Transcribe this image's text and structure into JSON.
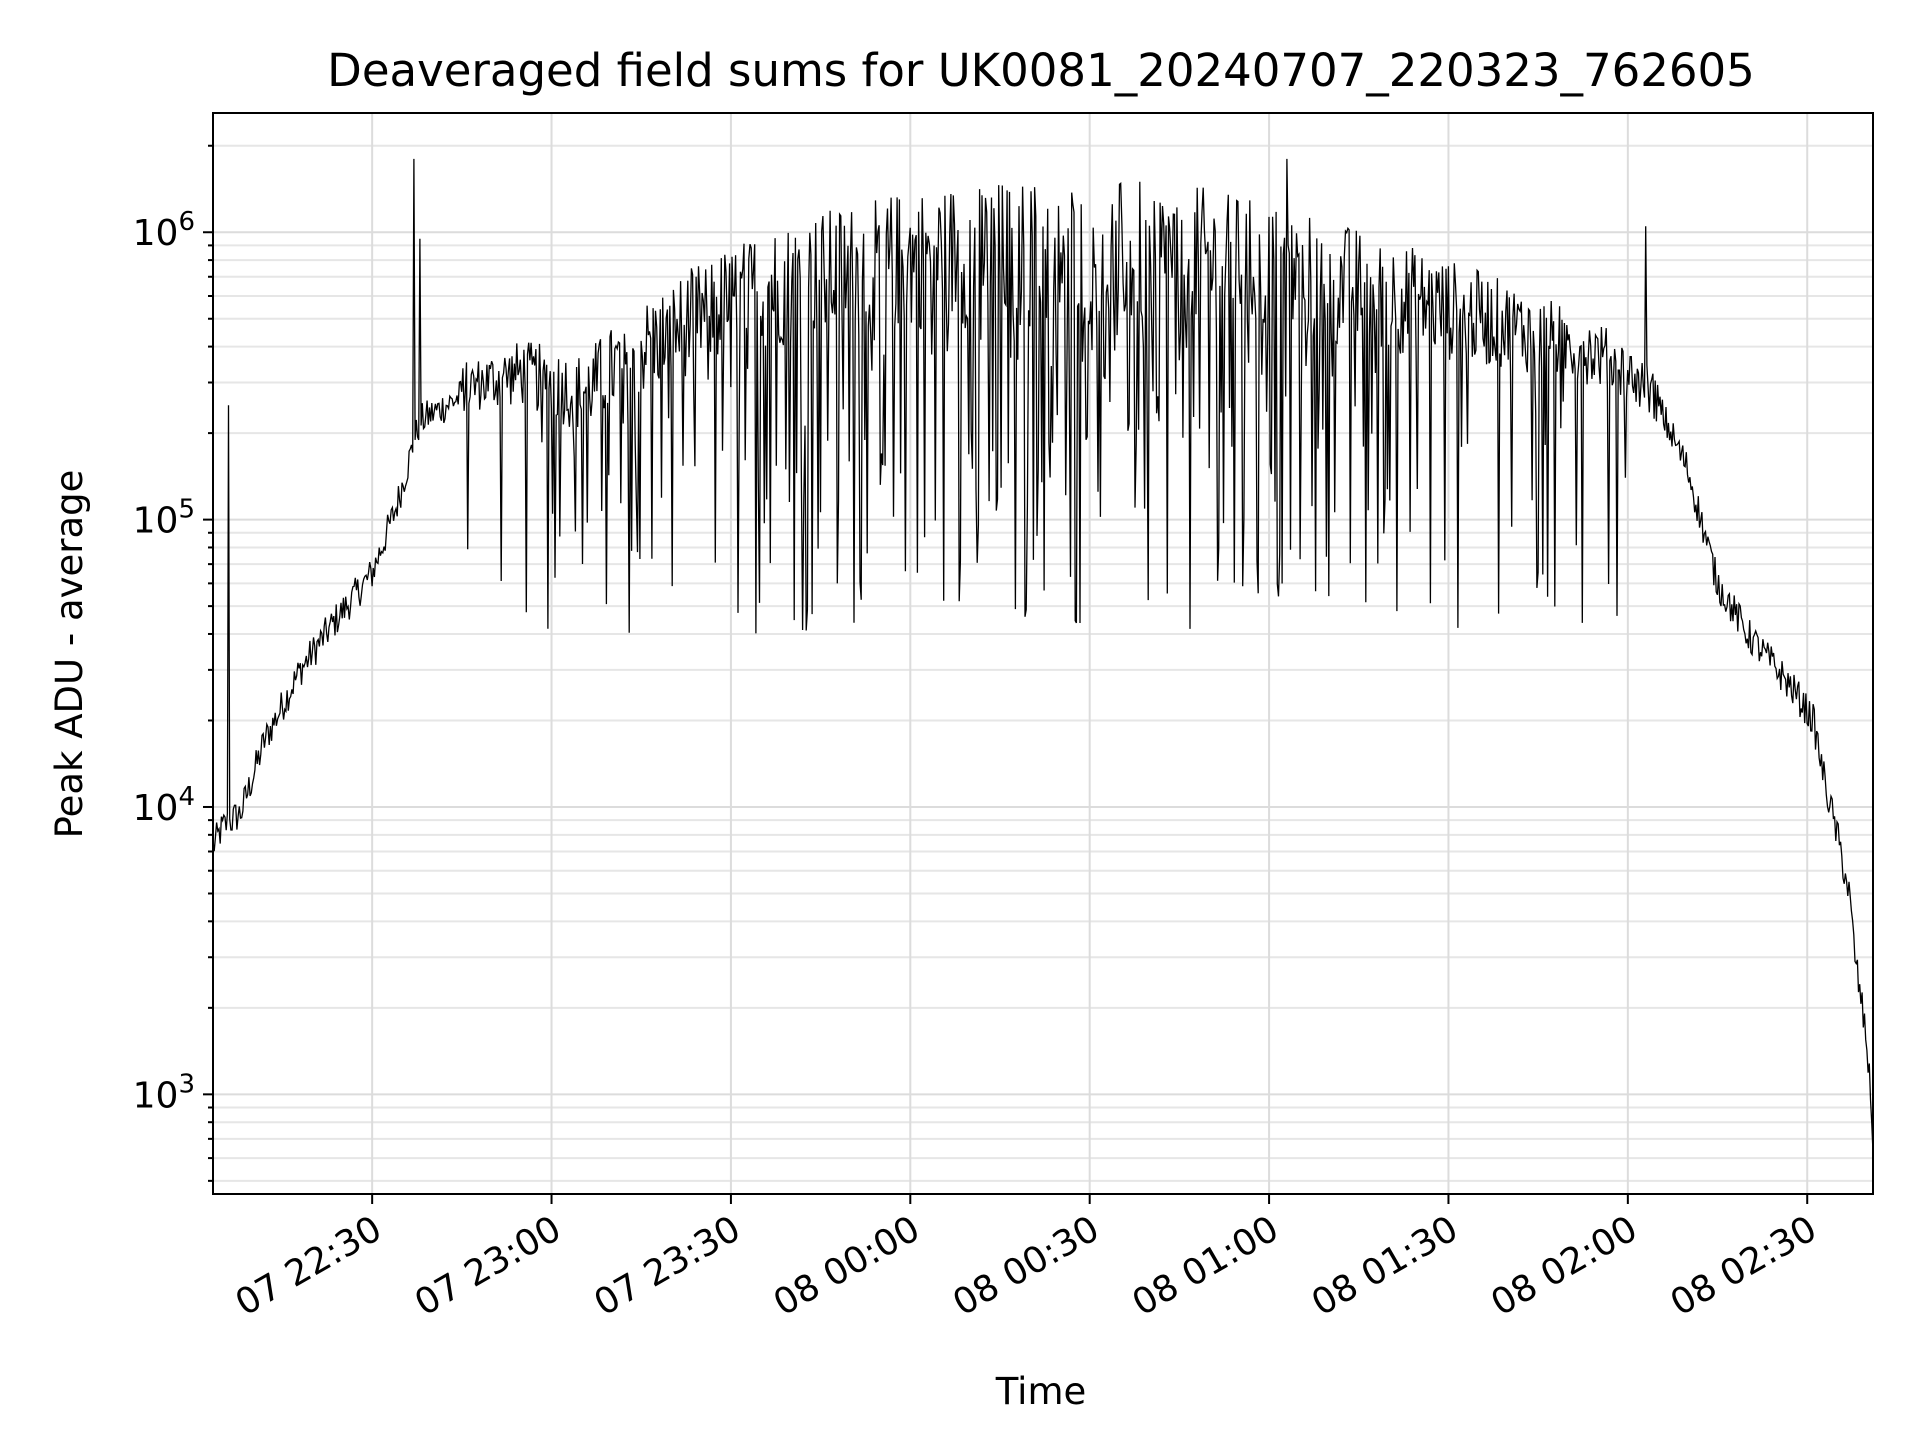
{
  "chart_data": {
    "type": "line",
    "title": "Deaveraged field sums for UK0081_20240707_220323_762605",
    "xlabel": "Time",
    "ylabel": "Peak ADU - average",
    "y_scale": "log",
    "ylim": [
      450,
      2600000
    ],
    "xlim": [
      "2024-07-07 22:03:23",
      "2024-07-08 02:41:00"
    ],
    "grid": true,
    "x_ticks": [
      "07 22:30",
      "07 23:00",
      "07 23:30",
      "08 00:00",
      "08 00:30",
      "08 01:00",
      "08 01:30",
      "08 02:00",
      "08 02:30"
    ],
    "y_ticks": [
      {
        "value": 1000,
        "base": "10",
        "exp": "3"
      },
      {
        "value": 10000,
        "base": "10",
        "exp": "4"
      },
      {
        "value": 100000,
        "base": "10",
        "exp": "5"
      },
      {
        "value": 1000000,
        "base": "10",
        "exp": "6"
      }
    ],
    "series": [
      {
        "color": "#000000",
        "envelope": {
          "x": [
            "22:03",
            "22:05",
            "22:08",
            "22:12",
            "22:18",
            "22:24",
            "22:30",
            "22:34",
            "22:38",
            "22:45",
            "22:55",
            "23:05",
            "23:15",
            "23:25",
            "23:35",
            "23:45",
            "23:55",
            "00:05",
            "00:15",
            "00:25",
            "00:35",
            "00:45",
            "00:55",
            "01:05",
            "01:15",
            "01:25",
            "01:35",
            "01:45",
            "01:55",
            "02:00",
            "02:05",
            "02:10",
            "02:15",
            "02:20",
            "02:25",
            "02:28",
            "02:31",
            "02:33",
            "02:35",
            "02:37",
            "02:38",
            "02:40",
            "02:41"
          ],
          "y": [
            7000,
            8500,
            9500,
            17000,
            30000,
            45000,
            65000,
            110000,
            220000,
            270000,
            300000,
            250000,
            350000,
            450000,
            550000,
            600000,
            650000,
            700000,
            700000,
            700000,
            700000,
            700000,
            650000,
            600000,
            550000,
            500000,
            450000,
            400000,
            350000,
            300000,
            250000,
            150000,
            60000,
            40000,
            30000,
            25000,
            20000,
            12000,
            8000,
            5000,
            3000,
            1500,
            700
          ]
        },
        "spikes": [
          {
            "x": "22:06",
            "y": 250000
          },
          {
            "x": "22:37",
            "y": 1800000
          },
          {
            "x": "22:38",
            "y": 950000
          },
          {
            "x": "01:03",
            "y": 1800000
          },
          {
            "x": "02:03",
            "y": 1050000
          }
        ],
        "noisy_range": {
          "start": "22:45",
          "end": "02:05",
          "low": 40000,
          "high": 1300000
        }
      }
    ]
  }
}
